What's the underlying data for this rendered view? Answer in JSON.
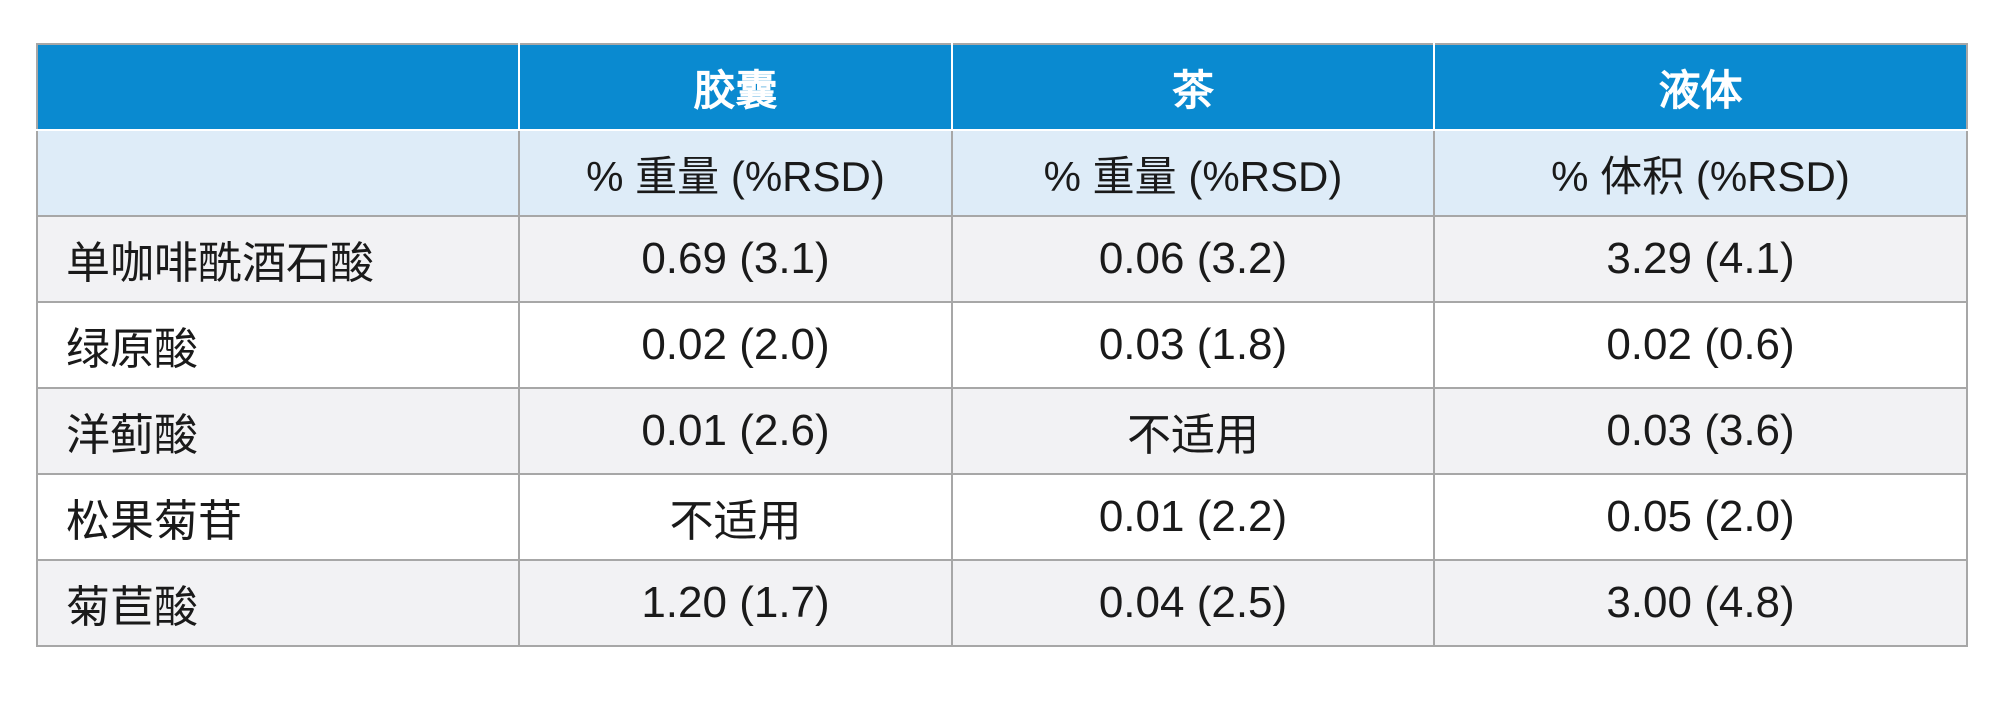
{
  "table": {
    "headers": [
      "",
      "胶囊",
      "茶",
      "液体"
    ],
    "units": [
      "",
      "% 重量 (%RSD)",
      "% 重量 (%RSD)",
      "% 体积 (%RSD)"
    ],
    "rows": [
      {
        "compound": "单咖啡酰酒石酸",
        "values": [
          "0.69 (3.1)",
          "0.06 (3.2)",
          "3.29 (4.1)"
        ]
      },
      {
        "compound": "绿原酸",
        "values": [
          "0.02 (2.0)",
          "0.03 (1.8)",
          "0.02 (0.6)"
        ]
      },
      {
        "compound": "洋蓟酸",
        "values": [
          "0.01 (2.6)",
          "不适用",
          "0.03 (3.6)"
        ]
      },
      {
        "compound": "松果菊苷",
        "values": [
          "不适用",
          "0.01 (2.2)",
          "0.05 (2.0)"
        ]
      },
      {
        "compound": "菊苣酸",
        "values": [
          "1.20 (1.7)",
          "0.04 (2.5)",
          "3.00 (4.8)"
        ]
      }
    ]
  },
  "colors": {
    "header_bg": "#0a8ad0",
    "unit_row_bg": "#deecf8",
    "odd_row_bg": "#f2f2f4",
    "border": "#a7a7a7"
  }
}
